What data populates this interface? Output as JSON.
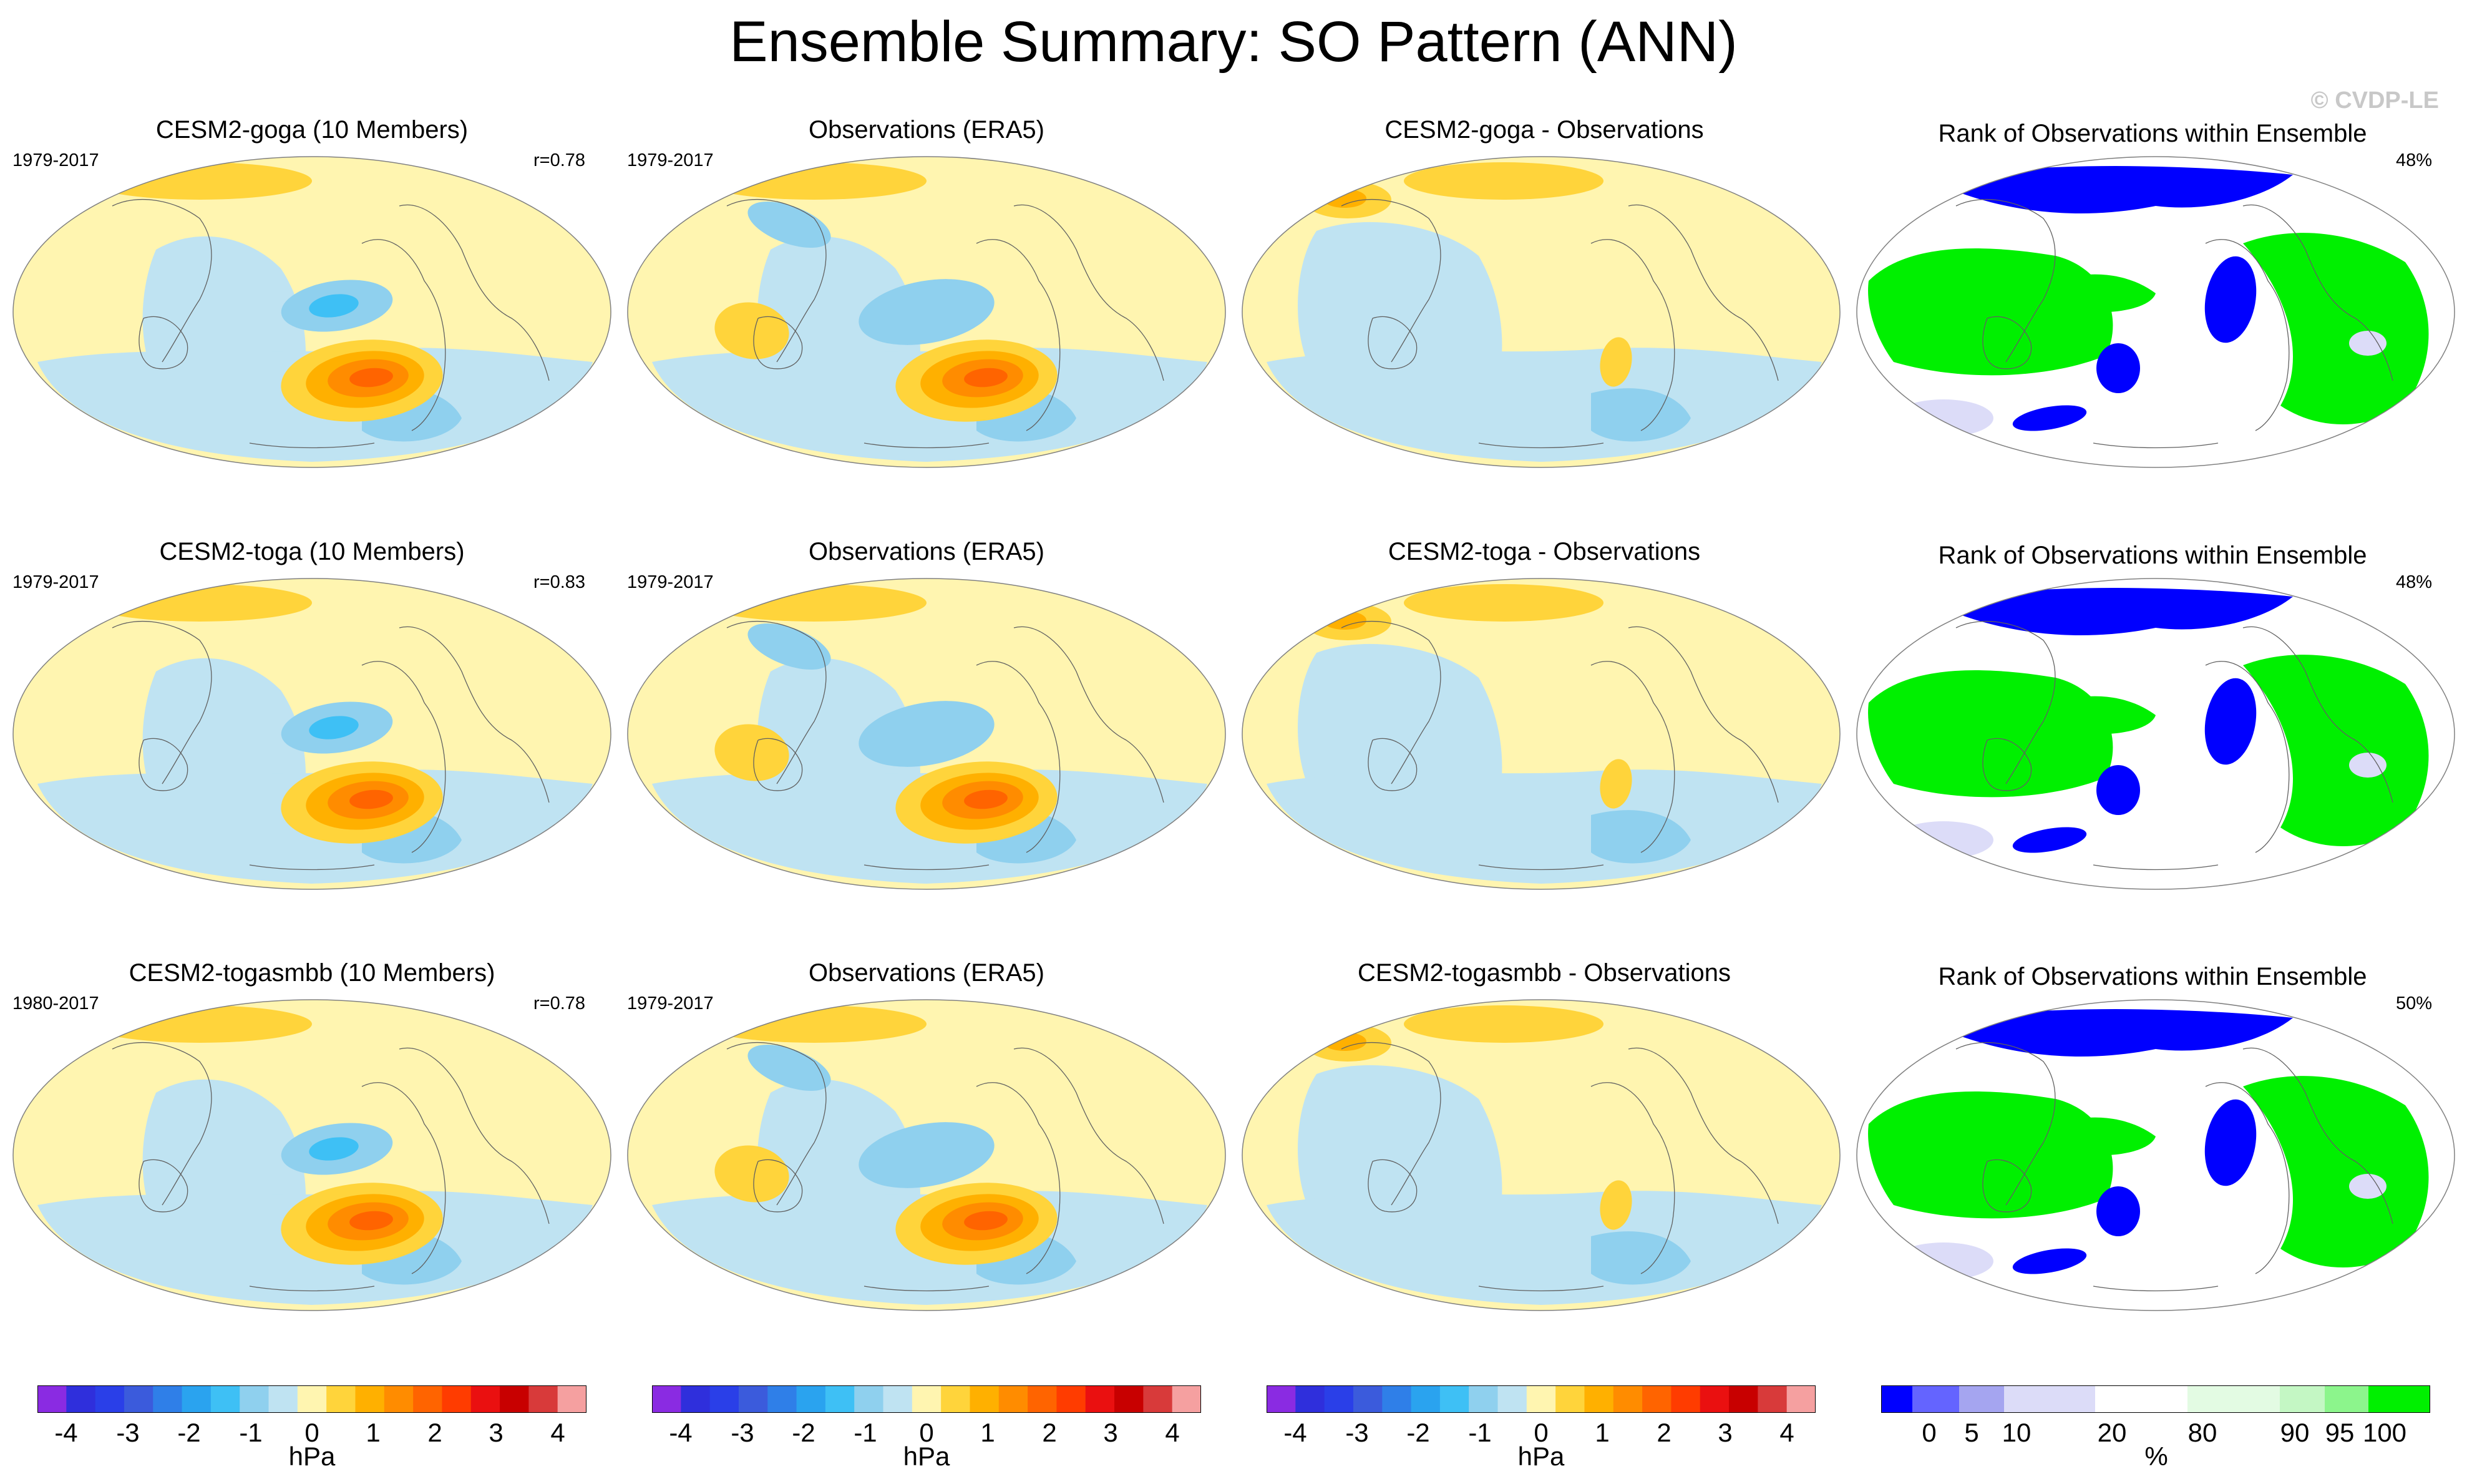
{
  "title": "Ensemble Summary: SO Pattern (ANN)",
  "copyright": "© CVDP-LE",
  "rows": [
    {
      "model_title": "CESM2-goga (10 Members)",
      "model_years": "1979-2017",
      "model_r": "r=0.78",
      "obs_title": "Observations (ERA5)",
      "obs_years": "1979-2017",
      "diff_title": "CESM2-goga - Observations",
      "rank_title": "Rank of Observations within Ensemble",
      "rank_pct": "48%"
    },
    {
      "model_title": "CESM2-toga (10 Members)",
      "model_years": "1979-2017",
      "model_r": "r=0.83",
      "obs_title": "Observations (ERA5)",
      "obs_years": "1979-2017",
      "diff_title": "CESM2-toga - Observations",
      "rank_title": "Rank of Observations within Ensemble",
      "rank_pct": "48%"
    },
    {
      "model_title": "CESM2-togasmbb (10 Members)",
      "model_years": "1980-2017",
      "model_r": "r=0.78",
      "obs_title": "Observations (ERA5)",
      "obs_years": "1979-2017",
      "diff_title": "CESM2-togasmbb - Observations",
      "rank_title": "Rank of Observations within Ensemble",
      "rank_pct": "50%"
    }
  ],
  "colorbars": {
    "hpa": {
      "unit": "hPa",
      "ticks": [
        "-4",
        "-3",
        "-2",
        "-1",
        "0",
        "1",
        "2",
        "3",
        "4"
      ],
      "colors": [
        "#8a2be2",
        "#2f2fdc",
        "#2a3fe8",
        "#3b5bdc",
        "#2f7fe8",
        "#2aa3ef",
        "#3ec0f5",
        "#8fd0ee",
        "#bfe3f2",
        "#fff5b0",
        "#ffd43b",
        "#ffb000",
        "#ff8c00",
        "#ff6400",
        "#ff3c00",
        "#ea1010",
        "#c80000",
        "#d83a3a",
        "#f5a0a0"
      ]
    },
    "rank": {
      "unit": "%",
      "ticks": [
        "0",
        "5",
        "10",
        "20",
        "80",
        "90",
        "95",
        "100"
      ],
      "colors": [
        "#0000ff",
        "#6464ff",
        "#a5a5f0",
        "#dcdcf8",
        "#ffffff",
        "#e3fbe3",
        "#c4f7c4",
        "#8cf58c",
        "#00f000"
      ]
    }
  },
  "chart_data": [
    {
      "type": "heatmap",
      "panel": "model",
      "row": 1,
      "title": "CESM2-goga (10 Members)",
      "years": "1979-2017",
      "pattern_correlation": 0.78,
      "units": "hPa",
      "contour_levels": [
        -4.5,
        -4,
        -3.5,
        -3,
        -2.5,
        -2,
        -1.5,
        -1,
        -0.5,
        0,
        0.5,
        1,
        1.5,
        2,
        2.5,
        3,
        3.5,
        4,
        4.5
      ]
    },
    {
      "type": "heatmap",
      "panel": "observations",
      "row": 1,
      "title": "Observations (ERA5)",
      "years": "1979-2017",
      "units": "hPa"
    },
    {
      "type": "heatmap",
      "panel": "difference",
      "row": 1,
      "title": "CESM2-goga - Observations",
      "units": "hPa"
    },
    {
      "type": "heatmap",
      "panel": "rank",
      "row": 1,
      "title": "Rank of Observations within Ensemble",
      "global_percent": 48,
      "units": "%"
    },
    {
      "type": "heatmap",
      "panel": "model",
      "row": 2,
      "title": "CESM2-toga (10 Members)",
      "years": "1979-2017",
      "pattern_correlation": 0.83,
      "units": "hPa"
    },
    {
      "type": "heatmap",
      "panel": "observations",
      "row": 2,
      "title": "Observations (ERA5)",
      "years": "1979-2017",
      "units": "hPa"
    },
    {
      "type": "heatmap",
      "panel": "difference",
      "row": 2,
      "title": "CESM2-toga - Observations",
      "units": "hPa"
    },
    {
      "type": "heatmap",
      "panel": "rank",
      "row": 2,
      "title": "Rank of Observations within Ensemble",
      "global_percent": 48,
      "units": "%"
    },
    {
      "type": "heatmap",
      "panel": "model",
      "row": 3,
      "title": "CESM2-togasmbb (10 Members)",
      "years": "1980-2017",
      "pattern_correlation": 0.78,
      "units": "hPa"
    },
    {
      "type": "heatmap",
      "panel": "observations",
      "row": 3,
      "title": "Observations (ERA5)",
      "years": "1979-2017",
      "units": "hPa"
    },
    {
      "type": "heatmap",
      "panel": "difference",
      "row": 3,
      "title": "CESM2-togasmbb - Observations",
      "units": "hPa"
    },
    {
      "type": "heatmap",
      "panel": "rank",
      "row": 3,
      "title": "Rank of Observations within Ensemble",
      "global_percent": 50,
      "units": "%"
    }
  ]
}
